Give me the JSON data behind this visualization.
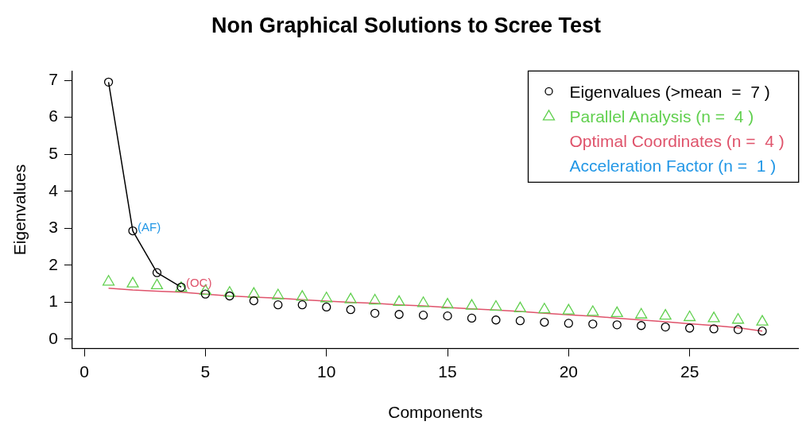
{
  "chart_data": {
    "type": "scatter",
    "title": "Non Graphical Solutions to Scree Test",
    "xlabel": "Components",
    "ylabel": "Eigenvalues",
    "x": [
      1,
      2,
      3,
      4,
      5,
      6,
      7,
      8,
      9,
      10,
      11,
      12,
      13,
      14,
      15,
      16,
      17,
      18,
      19,
      20,
      21,
      22,
      23,
      24,
      25,
      26,
      27,
      28
    ],
    "series": [
      {
        "name": "Eigenvalues (>mean  =  7 )",
        "marker": "circle",
        "color": "#000000",
        "values": [
          6.95,
          2.93,
          1.8,
          1.41,
          1.22,
          1.17,
          1.04,
          0.93,
          0.93,
          0.87,
          0.8,
          0.7,
          0.67,
          0.65,
          0.63,
          0.57,
          0.52,
          0.5,
          0.46,
          0.43,
          0.41,
          0.39,
          0.37,
          0.33,
          0.3,
          0.28,
          0.26,
          0.22
        ]
      },
      {
        "name": "Parallel Analysis (n =  4 )",
        "marker": "triangle",
        "color": "#61d04f",
        "values": [
          1.55,
          1.5,
          1.45,
          1.38,
          1.3,
          1.25,
          1.22,
          1.18,
          1.14,
          1.1,
          1.07,
          1.04,
          1.0,
          0.97,
          0.93,
          0.9,
          0.87,
          0.83,
          0.8,
          0.77,
          0.73,
          0.7,
          0.66,
          0.63,
          0.59,
          0.56,
          0.52,
          0.47
        ]
      },
      {
        "name": "Optimal Coordinates (n =  4 )",
        "type": "line",
        "marker": "none",
        "color": "#df536b",
        "values": [
          1.38,
          1.33,
          1.3,
          1.27,
          1.22,
          1.17,
          1.14,
          1.11,
          1.07,
          1.03,
          1.0,
          0.97,
          0.93,
          0.9,
          0.86,
          0.82,
          0.79,
          0.75,
          0.7,
          0.66,
          0.62,
          0.57,
          0.52,
          0.47,
          0.42,
          0.37,
          0.31,
          0.22
        ]
      },
      {
        "name": "Acceleration Factor (n =  1 )",
        "type": "line",
        "marker": "none",
        "color": "#2297e6",
        "values": [
          null,
          null,
          null,
          null,
          null,
          null,
          null,
          null,
          null,
          null,
          null,
          null,
          null,
          null,
          null,
          null,
          null,
          null,
          null,
          null,
          null,
          null,
          null,
          null,
          null,
          null,
          null,
          null
        ]
      },
      {
        "type": "line",
        "marker": "none",
        "color": "#000000",
        "x": [
          1,
          2,
          3,
          4
        ],
        "values": [
          6.95,
          2.93,
          1.8,
          1.41
        ]
      }
    ],
    "annotations": [
      {
        "text": "(AF)",
        "x": 2,
        "y": 2.93
      },
      {
        "text": "(OC)",
        "x": 4,
        "y": 1.41
      }
    ],
    "xlim": [
      -0.5,
      29.5
    ],
    "xticks": [
      0,
      5,
      10,
      15,
      20,
      25
    ],
    "ylim": [
      -0.25,
      7.25
    ],
    "yticks": [
      0,
      1,
      2,
      3,
      4,
      5,
      6,
      7
    ],
    "grid": false,
    "legend": "top right"
  }
}
